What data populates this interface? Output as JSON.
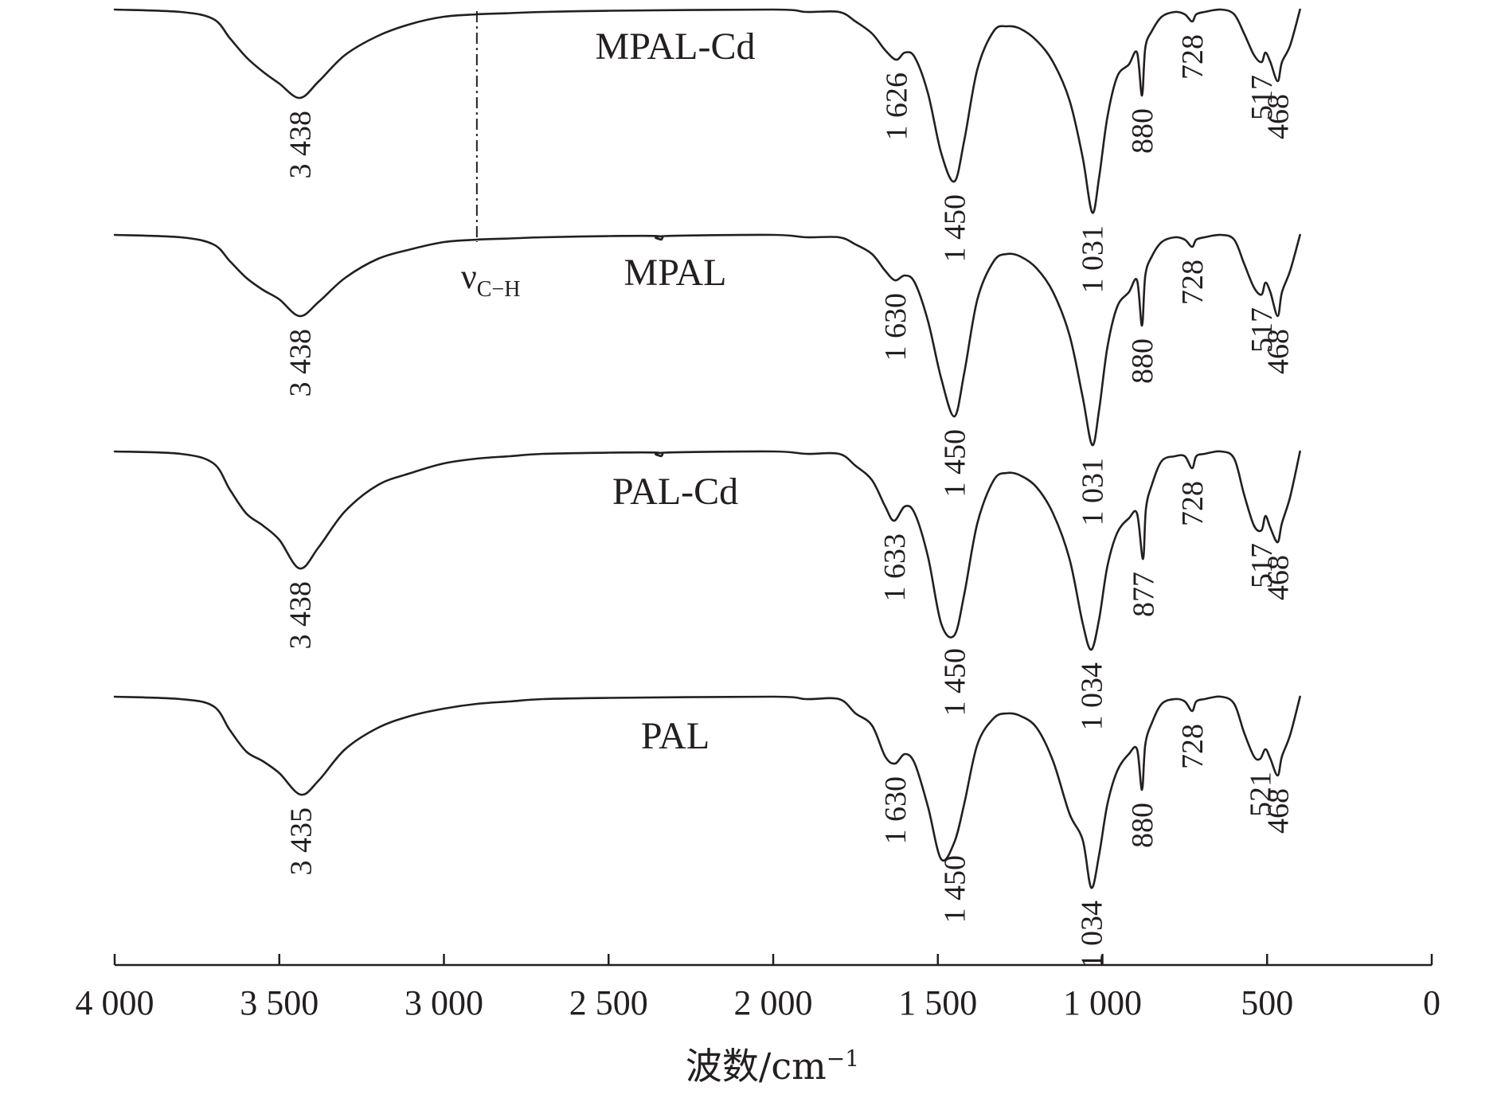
{
  "chart_data": {
    "type": "line",
    "xlabel": "波数/cm",
    "xlabel_sup": "−1",
    "xlim": [
      4000,
      0
    ],
    "x_ticks": [
      {
        "value": 4000,
        "label": "4 000"
      },
      {
        "value": 3500,
        "label": "3 500"
      },
      {
        "value": 3000,
        "label": "3 000"
      },
      {
        "value": 2500,
        "label": "2 500"
      },
      {
        "value": 2000,
        "label": "2 000"
      },
      {
        "value": 1500,
        "label": "1 500"
      },
      {
        "value": 1000,
        "label": "1 000"
      },
      {
        "value": 500,
        "label": "500"
      },
      {
        "value": 0,
        "label": "0"
      }
    ],
    "annotation": {
      "label": "ν",
      "sub": "C−H",
      "x": 2900
    },
    "series": [
      {
        "name": "MPAL-Cd",
        "peaks": [
          {
            "label": "3 438",
            "x": 3438
          },
          {
            "label": "1 626",
            "x": 1626
          },
          {
            "label": "1 450",
            "x": 1450
          },
          {
            "label": "1 031",
            "x": 1031
          },
          {
            "label": "880",
            "x": 880
          },
          {
            "label": "728",
            "x": 728
          },
          {
            "label": "517",
            "x": 517
          },
          {
            "label": "468",
            "x": 468
          }
        ],
        "points": [
          [
            4000,
            0.0
          ],
          [
            3800,
            0.01
          ],
          [
            3700,
            0.04
          ],
          [
            3650,
            0.12
          ],
          [
            3600,
            0.2
          ],
          [
            3550,
            0.26
          ],
          [
            3500,
            0.31
          ],
          [
            3438,
            0.37
          ],
          [
            3380,
            0.3
          ],
          [
            3300,
            0.19
          ],
          [
            3200,
            0.11
          ],
          [
            3100,
            0.06
          ],
          [
            3000,
            0.03
          ],
          [
            2900,
            0.02
          ],
          [
            2800,
            0.015
          ],
          [
            2700,
            0.01
          ],
          [
            2500,
            0.005
          ],
          [
            2000,
            0.0
          ],
          [
            1900,
            0.01
          ],
          [
            1800,
            0.01
          ],
          [
            1750,
            0.05
          ],
          [
            1700,
            0.1
          ],
          [
            1660,
            0.17
          ],
          [
            1626,
            0.21
          ],
          [
            1600,
            0.18
          ],
          [
            1570,
            0.2
          ],
          [
            1530,
            0.35
          ],
          [
            1490,
            0.6
          ],
          [
            1450,
            0.72
          ],
          [
            1420,
            0.55
          ],
          [
            1380,
            0.25
          ],
          [
            1330,
            0.09
          ],
          [
            1290,
            0.07
          ],
          [
            1250,
            0.08
          ],
          [
            1200,
            0.13
          ],
          [
            1150,
            0.22
          ],
          [
            1100,
            0.38
          ],
          [
            1060,
            0.62
          ],
          [
            1031,
            0.85
          ],
          [
            1010,
            0.7
          ],
          [
            985,
            0.45
          ],
          [
            955,
            0.28
          ],
          [
            920,
            0.23
          ],
          [
            895,
            0.18
          ],
          [
            880,
            0.36
          ],
          [
            870,
            0.16
          ],
          [
            850,
            0.09
          ],
          [
            820,
            0.03
          ],
          [
            780,
            0.01
          ],
          [
            750,
            0.02
          ],
          [
            728,
            0.05
          ],
          [
            715,
            0.02
          ],
          [
            690,
            0.01
          ],
          [
            640,
            0.0
          ],
          [
            600,
            0.02
          ],
          [
            570,
            0.1
          ],
          [
            540,
            0.19
          ],
          [
            517,
            0.22
          ],
          [
            505,
            0.18
          ],
          [
            490,
            0.22
          ],
          [
            468,
            0.3
          ],
          [
            455,
            0.22
          ],
          [
            430,
            0.15
          ],
          [
            400,
            0.0
          ]
        ]
      },
      {
        "name": "MPAL",
        "peaks": [
          {
            "label": "3 438",
            "x": 3438
          },
          {
            "label": "1 630",
            "x": 1630
          },
          {
            "label": "1 450",
            "x": 1450
          },
          {
            "label": "1 031",
            "x": 1031
          },
          {
            "label": "880",
            "x": 880
          },
          {
            "label": "728",
            "x": 728
          },
          {
            "label": "517",
            "x": 517
          },
          {
            "label": "468",
            "x": 468
          }
        ],
        "points": [
          [
            4000,
            0.0
          ],
          [
            3800,
            0.01
          ],
          [
            3700,
            0.04
          ],
          [
            3650,
            0.11
          ],
          [
            3600,
            0.18
          ],
          [
            3550,
            0.23
          ],
          [
            3500,
            0.27
          ],
          [
            3438,
            0.34
          ],
          [
            3380,
            0.28
          ],
          [
            3300,
            0.18
          ],
          [
            3200,
            0.1
          ],
          [
            3100,
            0.06
          ],
          [
            3000,
            0.03
          ],
          [
            2900,
            0.02
          ],
          [
            2800,
            0.015
          ],
          [
            2700,
            0.01
          ],
          [
            2500,
            0.005
          ],
          [
            2350,
            0.005
          ],
          [
            2340,
            0.02
          ],
          [
            2330,
            0.005
          ],
          [
            2000,
            0.0
          ],
          [
            1900,
            0.01
          ],
          [
            1800,
            0.01
          ],
          [
            1750,
            0.04
          ],
          [
            1700,
            0.08
          ],
          [
            1660,
            0.15
          ],
          [
            1630,
            0.19
          ],
          [
            1600,
            0.17
          ],
          [
            1570,
            0.2
          ],
          [
            1530,
            0.36
          ],
          [
            1490,
            0.6
          ],
          [
            1450,
            0.76
          ],
          [
            1420,
            0.58
          ],
          [
            1380,
            0.27
          ],
          [
            1330,
            0.11
          ],
          [
            1290,
            0.08
          ],
          [
            1250,
            0.09
          ],
          [
            1200,
            0.14
          ],
          [
            1150,
            0.24
          ],
          [
            1100,
            0.42
          ],
          [
            1060,
            0.68
          ],
          [
            1031,
            0.88
          ],
          [
            1010,
            0.73
          ],
          [
            985,
            0.47
          ],
          [
            955,
            0.3
          ],
          [
            920,
            0.24
          ],
          [
            895,
            0.19
          ],
          [
            880,
            0.38
          ],
          [
            870,
            0.17
          ],
          [
            850,
            0.09
          ],
          [
            820,
            0.03
          ],
          [
            780,
            0.01
          ],
          [
            750,
            0.02
          ],
          [
            728,
            0.05
          ],
          [
            715,
            0.02
          ],
          [
            690,
            0.01
          ],
          [
            640,
            0.0
          ],
          [
            600,
            0.02
          ],
          [
            570,
            0.12
          ],
          [
            540,
            0.22
          ],
          [
            517,
            0.25
          ],
          [
            505,
            0.2
          ],
          [
            490,
            0.24
          ],
          [
            468,
            0.34
          ],
          [
            455,
            0.24
          ],
          [
            430,
            0.15
          ],
          [
            400,
            0.0
          ]
        ]
      },
      {
        "name": "PAL-Cd",
        "peaks": [
          {
            "label": "3 438",
            "x": 3438
          },
          {
            "label": "1 633",
            "x": 1633
          },
          {
            "label": "1 450",
            "x": 1450
          },
          {
            "label": "1 034",
            "x": 1034
          },
          {
            "label": "877",
            "x": 877
          },
          {
            "label": "728",
            "x": 728
          },
          {
            "label": "517",
            "x": 517
          },
          {
            "label": "468",
            "x": 468
          }
        ],
        "points": [
          [
            4000,
            0.0
          ],
          [
            3800,
            0.01
          ],
          [
            3700,
            0.05
          ],
          [
            3650,
            0.16
          ],
          [
            3600,
            0.26
          ],
          [
            3550,
            0.31
          ],
          [
            3500,
            0.37
          ],
          [
            3438,
            0.49
          ],
          [
            3380,
            0.4
          ],
          [
            3300,
            0.25
          ],
          [
            3200,
            0.14
          ],
          [
            3100,
            0.09
          ],
          [
            3000,
            0.05
          ],
          [
            2900,
            0.03
          ],
          [
            2800,
            0.02
          ],
          [
            2700,
            0.01
          ],
          [
            2500,
            0.005
          ],
          [
            2350,
            0.005
          ],
          [
            2340,
            0.02
          ],
          [
            2330,
            0.005
          ],
          [
            2000,
            0.0
          ],
          [
            1900,
            0.01
          ],
          [
            1800,
            0.01
          ],
          [
            1750,
            0.06
          ],
          [
            1700,
            0.12
          ],
          [
            1660,
            0.23
          ],
          [
            1633,
            0.29
          ],
          [
            1600,
            0.23
          ],
          [
            1570,
            0.26
          ],
          [
            1530,
            0.44
          ],
          [
            1490,
            0.72
          ],
          [
            1450,
            0.77
          ],
          [
            1420,
            0.6
          ],
          [
            1380,
            0.3
          ],
          [
            1330,
            0.12
          ],
          [
            1290,
            0.09
          ],
          [
            1250,
            0.1
          ],
          [
            1200,
            0.15
          ],
          [
            1150,
            0.26
          ],
          [
            1100,
            0.45
          ],
          [
            1060,
            0.72
          ],
          [
            1034,
            0.83
          ],
          [
            1010,
            0.7
          ],
          [
            985,
            0.48
          ],
          [
            955,
            0.34
          ],
          [
            920,
            0.28
          ],
          [
            895,
            0.26
          ],
          [
            877,
            0.45
          ],
          [
            868,
            0.24
          ],
          [
            850,
            0.14
          ],
          [
            820,
            0.04
          ],
          [
            780,
            0.02
          ],
          [
            750,
            0.02
          ],
          [
            728,
            0.07
          ],
          [
            715,
            0.02
          ],
          [
            690,
            0.01
          ],
          [
            640,
            0.0
          ],
          [
            600,
            0.03
          ],
          [
            570,
            0.18
          ],
          [
            540,
            0.31
          ],
          [
            517,
            0.33
          ],
          [
            505,
            0.27
          ],
          [
            490,
            0.32
          ],
          [
            468,
            0.38
          ],
          [
            455,
            0.3
          ],
          [
            430,
            0.19
          ],
          [
            400,
            0.0
          ]
        ]
      },
      {
        "name": "PAL",
        "peaks": [
          {
            "label": "3 435",
            "x": 3435
          },
          {
            "label": "1 630",
            "x": 1630
          },
          {
            "label": "1 450",
            "x": 1450
          },
          {
            "label": "1 034",
            "x": 1034
          },
          {
            "label": "880",
            "x": 880
          },
          {
            "label": "728",
            "x": 728
          },
          {
            "label": "521",
            "x": 521
          },
          {
            "label": "468",
            "x": 468
          }
        ],
        "points": [
          [
            4000,
            0.0
          ],
          [
            3800,
            0.01
          ],
          [
            3700,
            0.04
          ],
          [
            3650,
            0.14
          ],
          [
            3600,
            0.23
          ],
          [
            3550,
            0.27
          ],
          [
            3500,
            0.32
          ],
          [
            3435,
            0.41
          ],
          [
            3380,
            0.35
          ],
          [
            3300,
            0.22
          ],
          [
            3200,
            0.13
          ],
          [
            3100,
            0.08
          ],
          [
            3000,
            0.05
          ],
          [
            2900,
            0.03
          ],
          [
            2800,
            0.02
          ],
          [
            2700,
            0.01
          ],
          [
            2500,
            0.005
          ],
          [
            2000,
            0.0
          ],
          [
            1900,
            0.01
          ],
          [
            1800,
            0.01
          ],
          [
            1750,
            0.07
          ],
          [
            1700,
            0.12
          ],
          [
            1660,
            0.25
          ],
          [
            1630,
            0.28
          ],
          [
            1600,
            0.24
          ],
          [
            1570,
            0.28
          ],
          [
            1530,
            0.46
          ],
          [
            1490,
            0.68
          ],
          [
            1450,
            0.61
          ],
          [
            1420,
            0.45
          ],
          [
            1380,
            0.2
          ],
          [
            1330,
            0.09
          ],
          [
            1290,
            0.07
          ],
          [
            1250,
            0.08
          ],
          [
            1200,
            0.13
          ],
          [
            1150,
            0.27
          ],
          [
            1100,
            0.49
          ],
          [
            1060,
            0.6
          ],
          [
            1034,
            0.8
          ],
          [
            1010,
            0.66
          ],
          [
            985,
            0.45
          ],
          [
            955,
            0.31
          ],
          [
            920,
            0.24
          ],
          [
            895,
            0.22
          ],
          [
            880,
            0.39
          ],
          [
            870,
            0.2
          ],
          [
            850,
            0.11
          ],
          [
            820,
            0.03
          ],
          [
            780,
            0.01
          ],
          [
            750,
            0.02
          ],
          [
            728,
            0.06
          ],
          [
            715,
            0.02
          ],
          [
            690,
            0.01
          ],
          [
            640,
            0.0
          ],
          [
            600,
            0.03
          ],
          [
            570,
            0.15
          ],
          [
            540,
            0.25
          ],
          [
            521,
            0.26
          ],
          [
            505,
            0.22
          ],
          [
            490,
            0.26
          ],
          [
            468,
            0.33
          ],
          [
            455,
            0.25
          ],
          [
            430,
            0.16
          ],
          [
            400,
            0.0
          ]
        ]
      }
    ]
  }
}
